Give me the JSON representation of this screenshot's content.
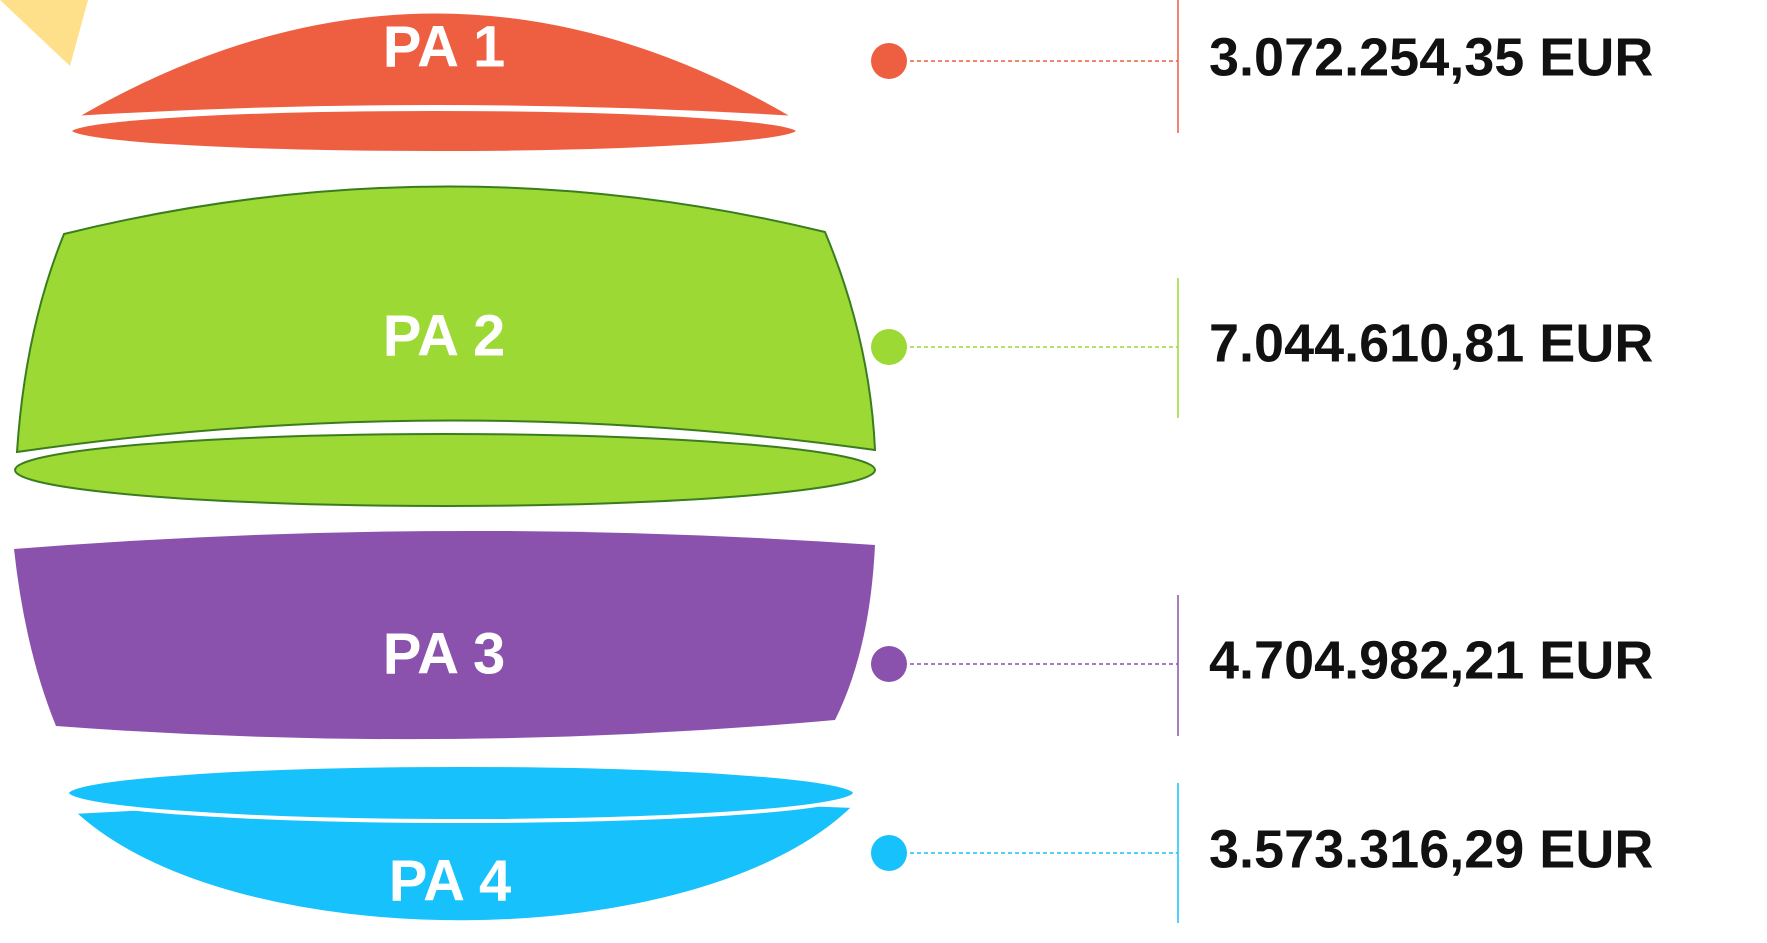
{
  "items": [
    {
      "label": "PA 1",
      "amount": "3.072.254,35 EUR",
      "color": "#ee5f41"
    },
    {
      "label": "PA 2",
      "amount": "7.044.610,81 EUR",
      "color": "#9cd935"
    },
    {
      "label": "PA 3",
      "amount": "4.704.982,21 EUR",
      "color": "#8a52ac"
    },
    {
      "label": "PA 4",
      "amount": "3.573.316,29 EUR",
      "color": "#17c1fb"
    }
  ]
}
